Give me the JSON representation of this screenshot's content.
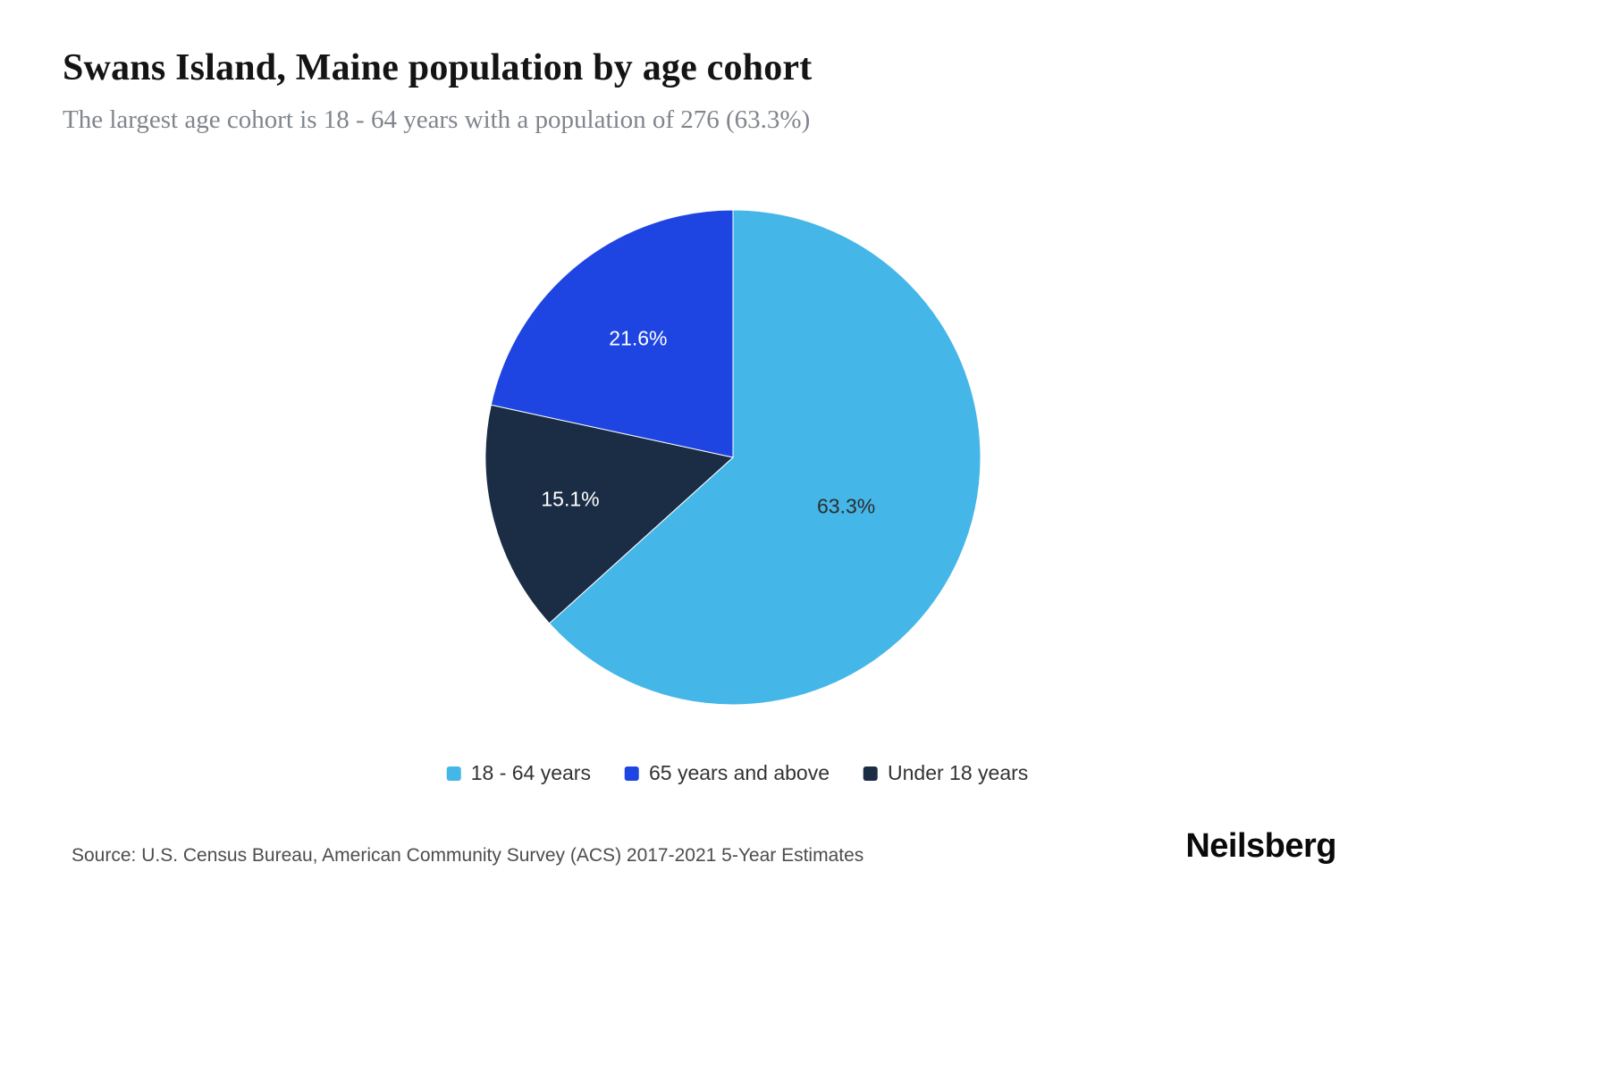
{
  "header": {
    "title": "Swans Island, Maine population by age cohort",
    "subtitle": "The largest age cohort is 18 - 64 years with a population of 276 (63.3%)"
  },
  "chart_data": {
    "type": "pie",
    "title": "Swans Island, Maine population by age cohort",
    "subtitle": "The largest age cohort is 18 - 64 years with a population of 276 (63.3%)",
    "categories": [
      "18 - 64 years",
      "65 years and above",
      "Under 18 years"
    ],
    "values": [
      63.3,
      21.6,
      15.1
    ],
    "unit": "%",
    "largest_cohort": {
      "label": "18 - 64 years",
      "population": 276,
      "share": "63.3%"
    },
    "start_angle_deg": 0,
    "direction": "clockwise",
    "legend_position": "bottom",
    "slices": [
      {
        "label": "18 - 64 years",
        "value": 63.3,
        "display": "63.3%",
        "color": "#45b6e8",
        "label_color": "#2d2d2d",
        "label_r": 0.5
      },
      {
        "label": "Under 18 years",
        "value": 15.1,
        "display": "15.1%",
        "color": "#1b2d45",
        "label_color": "#ffffff",
        "label_r": 0.68
      },
      {
        "label": "65 years and above",
        "value": 21.6,
        "display": "21.6%",
        "color": "#1e45e1",
        "label_color": "#ffffff",
        "label_r": 0.61
      }
    ],
    "legend_order": [
      0,
      2,
      1
    ]
  },
  "footer": {
    "source": "Source: U.S. Census Bureau, American Community Survey (ACS) 2017-2021 5-Year Estimates",
    "brand": "Neilsberg"
  }
}
